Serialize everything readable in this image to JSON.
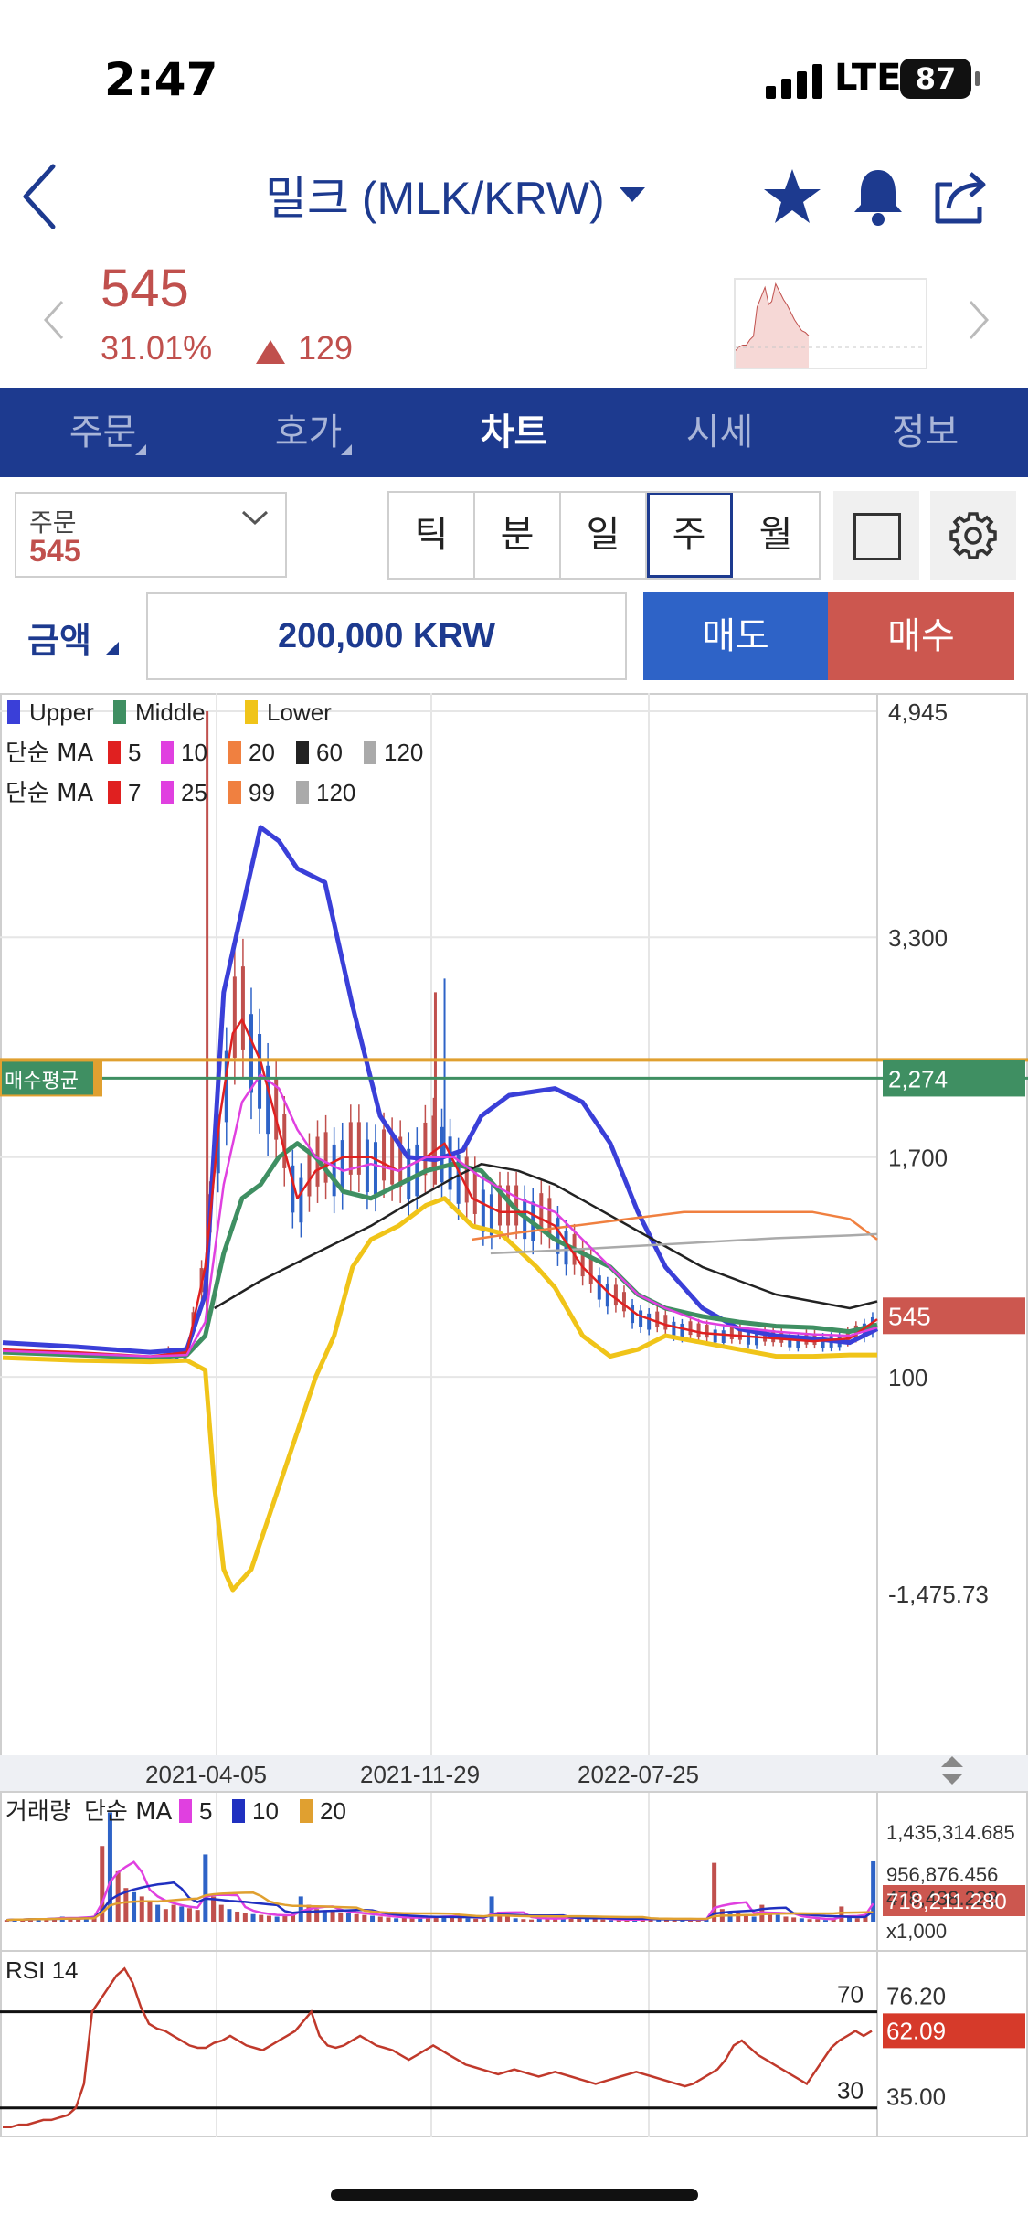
{
  "status": {
    "time": "2:47",
    "network": "LTE",
    "battery": "87"
  },
  "header": {
    "title": "밀크 (MLK/KRW)",
    "icons": [
      "back-chevron-icon",
      "star-icon",
      "bell-icon",
      "share-icon",
      "dropdown-caret-icon"
    ]
  },
  "price": {
    "current": "545",
    "change_pct": "31.01%",
    "change_abs": "129",
    "direction": "up"
  },
  "tabs": [
    {
      "label": "주문"
    },
    {
      "label": "호가"
    },
    {
      "label": "차트"
    },
    {
      "label": "시세"
    },
    {
      "label": "정보"
    }
  ],
  "active_tab": "차트",
  "order": {
    "label": "주문",
    "value": "545"
  },
  "periods": [
    {
      "label": "틱"
    },
    {
      "label": "분"
    },
    {
      "label": "일"
    },
    {
      "label": "주"
    },
    {
      "label": "월"
    }
  ],
  "active_period": "주",
  "amount": {
    "label": "금액",
    "value": "200,000 KRW",
    "sell": "매도",
    "buy": "매수"
  },
  "colors": {
    "brand": "#1d3a8f",
    "up": "#c0504d",
    "down": "#2e63c7",
    "avg": "#3f8f62",
    "orange": "#e0a030"
  },
  "chart_data": [
    {
      "type": "line",
      "legend": {
        "bollinger": [
          {
            "name": "Upper",
            "color": "#3a3fd8"
          },
          {
            "name": "Middle",
            "color": "#3f8f62"
          },
          {
            "name": "Lower",
            "color": "#f0c419"
          }
        ],
        "ma_row1": {
          "label": "단순 MA",
          "items": [
            {
              "name": "5",
              "color": "#e02020"
            },
            {
              "name": "10",
              "color": "#e040e0"
            },
            {
              "name": "20",
              "color": "#f08040"
            },
            {
              "name": "60",
              "color": "#222222"
            },
            {
              "name": "120",
              "color": "#aaaaaa"
            }
          ]
        },
        "ma_row2": {
          "label": "단순 MA",
          "items": [
            {
              "name": "7",
              "color": "#e02020"
            },
            {
              "name": "25",
              "color": "#e040e0"
            },
            {
              "name": "99",
              "color": "#f08040"
            },
            {
              "name": "120",
              "color": "#aaaaaa"
            }
          ]
        }
      },
      "y_ticks": [
        "4,945",
        "3,300",
        "1,700",
        "100",
        "-1,475.73"
      ],
      "ylim": [
        -1475.73,
        4945
      ],
      "avg_line": {
        "label": "매수평균",
        "value": "2,274",
        "y": 2274
      },
      "last_price": {
        "label": "545",
        "y": 545
      },
      "x_labels": [
        "2021-04-05",
        "2021-11-29",
        "2022-07-25"
      ],
      "series": [
        {
          "name": "Upper",
          "color": "#3a3fd8",
          "points": [
            [
              0,
              350
            ],
            [
              40,
              320
            ],
            [
              60,
              300
            ],
            [
              80,
              280
            ],
            [
              100,
              300
            ],
            [
              110,
              700
            ],
            [
              115,
              1800
            ],
            [
              120,
              2900
            ],
            [
              130,
              3500
            ],
            [
              140,
              4100
            ],
            [
              150,
              4000
            ],
            [
              160,
              3800
            ],
            [
              175,
              3700
            ],
            [
              190,
              2800
            ],
            [
              205,
              2000
            ],
            [
              220,
              1700
            ],
            [
              235,
              1680
            ],
            [
              250,
              1750
            ],
            [
              260,
              2000
            ],
            [
              275,
              2150
            ],
            [
              300,
              2200
            ],
            [
              315,
              2100
            ],
            [
              330,
              1800
            ],
            [
              345,
              1300
            ],
            [
              360,
              900
            ],
            [
              380,
              600
            ],
            [
              400,
              450
            ],
            [
              420,
              400
            ],
            [
              440,
              380
            ],
            [
              460,
              350
            ],
            [
              475,
              450
            ]
          ]
        },
        {
          "name": "Middle",
          "color": "#3f8f62",
          "points": [
            [
              0,
              280
            ],
            [
              40,
              260
            ],
            [
              80,
              240
            ],
            [
              100,
              260
            ],
            [
              110,
              400
            ],
            [
              120,
              1000
            ],
            [
              130,
              1400
            ],
            [
              140,
              1500
            ],
            [
              150,
              1700
            ],
            [
              160,
              1800
            ],
            [
              170,
              1700
            ],
            [
              185,
              1450
            ],
            [
              200,
              1400
            ],
            [
              215,
              1500
            ],
            [
              230,
              1600
            ],
            [
              245,
              1650
            ],
            [
              260,
              1600
            ],
            [
              280,
              1300
            ],
            [
              300,
              1100
            ],
            [
              315,
              1000
            ],
            [
              330,
              900
            ],
            [
              345,
              700
            ],
            [
              360,
              600
            ],
            [
              380,
              540
            ],
            [
              400,
              500
            ],
            [
              420,
              470
            ],
            [
              440,
              460
            ],
            [
              460,
              430
            ],
            [
              475,
              480
            ]
          ]
        },
        {
          "name": "Lower",
          "color": "#f0c419",
          "points": [
            [
              0,
              240
            ],
            [
              40,
              220
            ],
            [
              80,
              210
            ],
            [
              100,
              220
            ],
            [
              110,
              150
            ],
            [
              115,
              -700
            ],
            [
              120,
              -1300
            ],
            [
              125,
              -1450
            ],
            [
              135,
              -1300
            ],
            [
              150,
              -700
            ],
            [
              160,
              -300
            ],
            [
              170,
              100
            ],
            [
              180,
              400
            ],
            [
              190,
              900
            ],
            [
              200,
              1100
            ],
            [
              215,
              1200
            ],
            [
              230,
              1350
            ],
            [
              240,
              1400
            ],
            [
              255,
              1200
            ],
            [
              270,
              1150
            ],
            [
              290,
              900
            ],
            [
              300,
              750
            ],
            [
              315,
              400
            ],
            [
              330,
              250
            ],
            [
              345,
              300
            ],
            [
              360,
              400
            ],
            [
              380,
              350
            ],
            [
              400,
              300
            ],
            [
              420,
              250
            ],
            [
              440,
              250
            ],
            [
              460,
              260
            ],
            [
              475,
              260
            ]
          ]
        },
        {
          "name": "MA 60",
          "color": "#222222",
          "points": [
            [
              115,
              600
            ],
            [
              140,
              800
            ],
            [
              170,
              1000
            ],
            [
              200,
              1200
            ],
            [
              225,
              1400
            ],
            [
              245,
              1550
            ],
            [
              260,
              1650
            ],
            [
              280,
              1600
            ],
            [
              300,
              1500
            ],
            [
              320,
              1350
            ],
            [
              340,
              1200
            ],
            [
              360,
              1050
            ],
            [
              380,
              900
            ],
            [
              400,
              800
            ],
            [
              420,
              700
            ],
            [
              440,
              650
            ],
            [
              460,
              600
            ],
            [
              475,
              650
            ]
          ]
        },
        {
          "name": "MA 99",
          "color": "#f08040",
          "points": [
            [
              255,
              1100
            ],
            [
              280,
              1150
            ],
            [
              310,
              1200
            ],
            [
              340,
              1250
            ],
            [
              370,
              1300
            ],
            [
              400,
              1300
            ],
            [
              440,
              1300
            ],
            [
              460,
              1250
            ],
            [
              475,
              1100
            ]
          ]
        },
        {
          "name": "MA 120",
          "color": "#aaaaaa",
          "points": [
            [
              265,
              1000
            ],
            [
              300,
              1020
            ],
            [
              340,
              1050
            ],
            [
              380,
              1080
            ],
            [
              420,
              1110
            ],
            [
              460,
              1130
            ],
            [
              475,
              1140
            ]
          ]
        },
        {
          "name": "MA 7",
          "color": "#e02020",
          "points": [
            [
              0,
              300
            ],
            [
              40,
              280
            ],
            [
              80,
              250
            ],
            [
              100,
              280
            ],
            [
              110,
              900
            ],
            [
              118,
              2000
            ],
            [
              125,
              2600
            ],
            [
              130,
              2700
            ],
            [
              140,
              2400
            ],
            [
              150,
              1900
            ],
            [
              160,
              1400
            ],
            [
              170,
              1600
            ],
            [
              185,
              1700
            ],
            [
              200,
              1700
            ],
            [
              215,
              1600
            ],
            [
              230,
              1700
            ],
            [
              240,
              1800
            ],
            [
              255,
              1400
            ],
            [
              270,
              1300
            ],
            [
              285,
              1300
            ],
            [
              300,
              1200
            ],
            [
              315,
              900
            ],
            [
              330,
              700
            ],
            [
              345,
              550
            ],
            [
              360,
              480
            ],
            [
              380,
              420
            ],
            [
              400,
              400
            ],
            [
              420,
              380
            ],
            [
              440,
              360
            ],
            [
              460,
              380
            ],
            [
              475,
              520
            ]
          ]
        },
        {
          "name": "MA 25",
          "color": "#e040e0",
          "points": [
            [
              0,
              290
            ],
            [
              80,
              250
            ],
            [
              100,
              260
            ],
            [
              110,
              500
            ],
            [
              120,
              1500
            ],
            [
              130,
              2100
            ],
            [
              140,
              2300
            ],
            [
              150,
              2200
            ],
            [
              160,
              1900
            ],
            [
              170,
              1700
            ],
            [
              185,
              1600
            ],
            [
              200,
              1650
            ],
            [
              215,
              1600
            ],
            [
              230,
              1700
            ],
            [
              245,
              1700
            ],
            [
              260,
              1550
            ],
            [
              280,
              1400
            ],
            [
              300,
              1300
            ],
            [
              315,
              1100
            ],
            [
              330,
              900
            ],
            [
              345,
              700
            ],
            [
              360,
              600
            ],
            [
              380,
              500
            ],
            [
              400,
              460
            ],
            [
              420,
              430
            ],
            [
              440,
              410
            ],
            [
              460,
              400
            ],
            [
              475,
              460
            ]
          ]
        }
      ]
    },
    {
      "type": "bar",
      "label": "거래량",
      "legend": {
        "label": "단순 MA",
        "items": [
          {
            "name": "5",
            "color": "#e040e0"
          },
          {
            "name": "10",
            "color": "#2030c0"
          },
          {
            "name": "20",
            "color": "#e0a030"
          }
        ]
      },
      "y_ticks": [
        "1,435,314.685",
        "956,876.456",
        "478,438.228",
        "x1,000"
      ],
      "ylim": [
        0,
        1435314.685
      ],
      "last_value": "718,211.280",
      "values_k": [
        20,
        30,
        25,
        40,
        35,
        30,
        45,
        60,
        50,
        40,
        55,
        70,
        900,
        1300,
        600,
        400,
        350,
        300,
        250,
        200,
        150,
        200,
        180,
        160,
        140,
        800,
        300,
        200,
        150,
        120,
        100,
        90,
        80,
        70,
        60,
        80,
        100,
        300,
        200,
        150,
        130,
        120,
        110,
        100,
        90,
        80,
        70,
        60,
        50,
        40,
        45,
        50,
        55,
        60,
        65,
        70,
        60,
        50,
        40,
        35,
        30,
        300,
        120,
        60,
        40,
        30,
        25,
        60,
        40,
        30,
        40,
        70,
        50,
        40,
        30,
        25,
        20,
        20,
        25,
        30,
        35,
        40,
        30,
        25,
        20,
        20,
        25,
        30,
        40,
        700,
        150,
        120,
        100,
        80,
        60,
        200,
        100,
        80,
        60,
        50,
        40,
        30,
        30,
        20,
        30,
        180,
        60,
        40,
        80,
        718
      ]
    },
    {
      "type": "line",
      "label": "RSI 14",
      "y_ticks": [
        "76.20",
        "35.00"
      ],
      "ylim": [
        20,
        90
      ],
      "upper_label": "70",
      "lower_label": "30",
      "last_value": "62.09",
      "values": [
        22,
        22,
        23,
        23,
        24,
        25,
        25,
        26,
        27,
        30,
        40,
        70,
        75,
        80,
        85,
        88,
        82,
        72,
        65,
        63,
        62,
        60,
        58,
        56,
        55,
        55,
        57,
        58,
        60,
        58,
        56,
        55,
        54,
        56,
        58,
        60,
        62,
        66,
        70,
        60,
        56,
        55,
        56,
        58,
        60,
        58,
        56,
        55,
        54,
        52,
        50,
        52,
        54,
        56,
        54,
        52,
        50,
        48,
        47,
        46,
        45,
        44,
        45,
        46,
        45,
        44,
        43,
        44,
        45,
        44,
        43,
        42,
        41,
        40,
        41,
        42,
        43,
        44,
        45,
        44,
        43,
        42,
        41,
        40,
        39,
        40,
        42,
        44,
        46,
        50,
        56,
        58,
        55,
        52,
        50,
        48,
        46,
        44,
        42,
        40,
        45,
        50,
        55,
        58,
        60,
        62,
        60,
        62
      ]
    }
  ]
}
